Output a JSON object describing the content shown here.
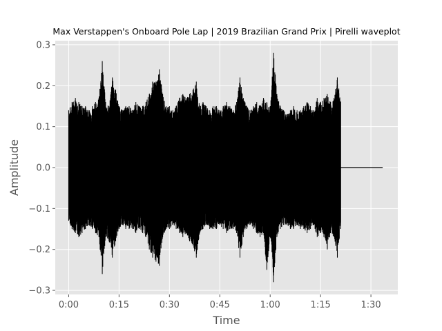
{
  "chart_data": {
    "type": "line",
    "title": "Max Verstappen's Onboard Pole Lap | 2019 Brazilian Grand Prix | Pirelli waveplot",
    "xlabel": "Time",
    "ylabel": "Amplitude",
    "xlim": [
      -4,
      98
    ],
    "ylim": [
      -0.31,
      0.31
    ],
    "grid": true,
    "style": "ggplot",
    "line_color": "#000000",
    "background_color": "#e5e5e5",
    "x_ticks": [
      {
        "value": 0,
        "label": "0:00"
      },
      {
        "value": 15,
        "label": "0:15"
      },
      {
        "value": 30,
        "label": "0:30"
      },
      {
        "value": 45,
        "label": "0:45"
      },
      {
        "value": 60,
        "label": "1:00"
      },
      {
        "value": 75,
        "label": "1:15"
      },
      {
        "value": 90,
        "label": "1:30"
      }
    ],
    "y_ticks": [
      {
        "value": 0.3,
        "label": "0.3"
      },
      {
        "value": 0.2,
        "label": "0.2"
      },
      {
        "value": 0.1,
        "label": "0.1"
      },
      {
        "value": 0.0,
        "label": "0.0"
      },
      {
        "value": -0.1,
        "label": "−0.1"
      },
      {
        "value": -0.2,
        "label": "−0.2"
      },
      {
        "value": -0.3,
        "label": "−0.3"
      }
    ],
    "series": [
      {
        "envelope": {
          "x": [
            0,
            1,
            2,
            3,
            4,
            5,
            6,
            7,
            8,
            9,
            10,
            11,
            12,
            13,
            14,
            15,
            16,
            17,
            18,
            19,
            20,
            21,
            22,
            23,
            24,
            25,
            26,
            27,
            28,
            29,
            30,
            31,
            32,
            33,
            34,
            35,
            36,
            37,
            38,
            39,
            40,
            41,
            42,
            43,
            44,
            45,
            46,
            47,
            48,
            49,
            50,
            51,
            52,
            53,
            54,
            55,
            56,
            57,
            58,
            59,
            60,
            61,
            62,
            63,
            64,
            65,
            66,
            67,
            68,
            69,
            70,
            71,
            72,
            73,
            74,
            75,
            76,
            77,
            78,
            79,
            80,
            81
          ],
          "max": [
            0.14,
            0.16,
            0.17,
            0.16,
            0.15,
            0.15,
            0.14,
            0.15,
            0.16,
            0.17,
            0.26,
            0.16,
            0.15,
            0.22,
            0.19,
            0.15,
            0.14,
            0.15,
            0.15,
            0.14,
            0.16,
            0.15,
            0.15,
            0.16,
            0.18,
            0.21,
            0.21,
            0.24,
            0.18,
            0.15,
            0.15,
            0.14,
            0.15,
            0.17,
            0.18,
            0.17,
            0.18,
            0.19,
            0.21,
            0.15,
            0.16,
            0.15,
            0.14,
            0.15,
            0.15,
            0.14,
            0.15,
            0.16,
            0.15,
            0.14,
            0.16,
            0.22,
            0.17,
            0.15,
            0.14,
            0.15,
            0.16,
            0.15,
            0.17,
            0.16,
            0.15,
            0.28,
            0.18,
            0.15,
            0.14,
            0.13,
            0.14,
            0.15,
            0.14,
            0.14,
            0.15,
            0.16,
            0.15,
            0.14,
            0.17,
            0.16,
            0.17,
            0.18,
            0.16,
            0.17,
            0.22,
            0.16
          ],
          "min": [
            -0.13,
            -0.15,
            -0.16,
            -0.17,
            -0.16,
            -0.15,
            -0.14,
            -0.15,
            -0.16,
            -0.17,
            -0.26,
            -0.17,
            -0.18,
            -0.22,
            -0.18,
            -0.15,
            -0.14,
            -0.15,
            -0.15,
            -0.15,
            -0.16,
            -0.15,
            -0.16,
            -0.17,
            -0.2,
            -0.22,
            -0.23,
            -0.24,
            -0.17,
            -0.15,
            -0.15,
            -0.14,
            -0.15,
            -0.16,
            -0.17,
            -0.16,
            -0.18,
            -0.19,
            -0.22,
            -0.16,
            -0.15,
            -0.14,
            -0.15,
            -0.15,
            -0.15,
            -0.14,
            -0.15,
            -0.16,
            -0.15,
            -0.15,
            -0.16,
            -0.22,
            -0.17,
            -0.15,
            -0.14,
            -0.15,
            -0.16,
            -0.17,
            -0.16,
            -0.25,
            -0.17,
            -0.28,
            -0.17,
            -0.15,
            -0.14,
            -0.14,
            -0.15,
            -0.15,
            -0.14,
            -0.15,
            -0.15,
            -0.16,
            -0.15,
            -0.14,
            -0.17,
            -0.16,
            -0.17,
            -0.2,
            -0.16,
            -0.17,
            -0.22,
            -0.15
          ]
        },
        "silence": {
          "x": [
            81,
            93.5
          ],
          "y": [
            0,
            0
          ]
        }
      }
    ]
  }
}
